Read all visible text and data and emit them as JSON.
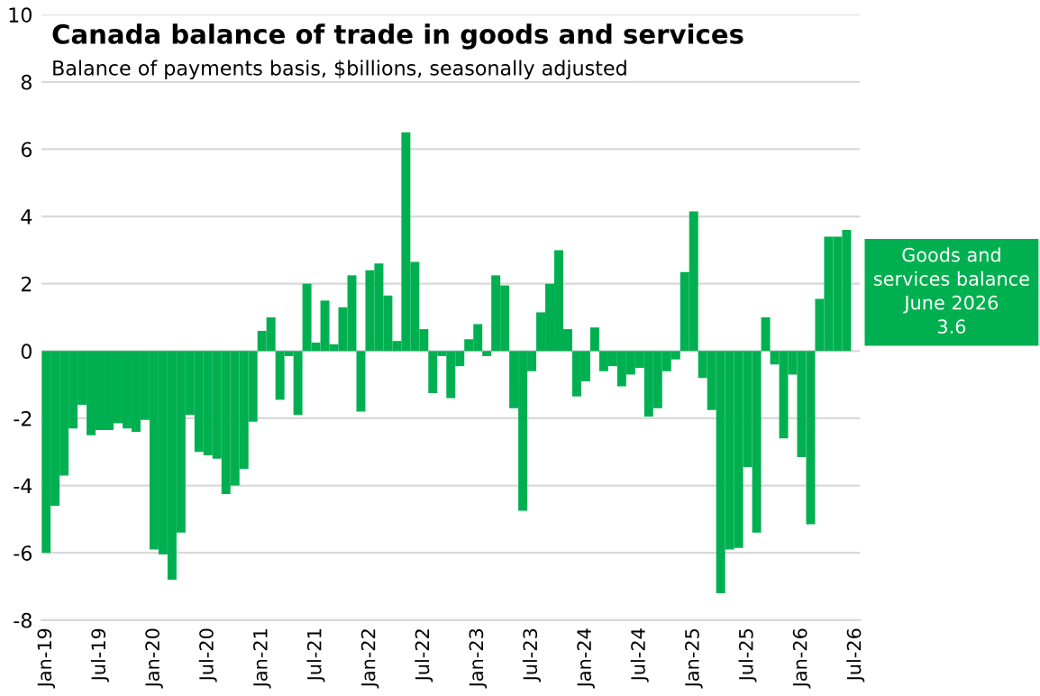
{
  "chart_data": {
    "type": "bar",
    "title": "Canada balance of trade in goods and services",
    "subtitle": "Balance of payments basis, $billions, seasonally adjusted",
    "categories": [
      "Jan-19",
      null,
      null,
      null,
      null,
      null,
      "Jul-19",
      null,
      null,
      null,
      null,
      null,
      "Jan-20",
      null,
      null,
      null,
      null,
      null,
      "Jul-20",
      null,
      null,
      null,
      null,
      null,
      "Jan-21",
      null,
      null,
      null,
      null,
      null,
      "Jul-21",
      null,
      null,
      null,
      null,
      null,
      "Jan-22",
      null,
      null,
      null,
      null,
      null,
      "Jul-22",
      null,
      null,
      null,
      null,
      null,
      "Jan-23",
      null,
      null,
      null,
      null,
      null,
      "Jul-23",
      null,
      null,
      null,
      null,
      null,
      "Jan-24",
      null,
      null,
      null,
      null,
      null,
      "Jul-24",
      null,
      null,
      null,
      null,
      null,
      "Jan-25",
      null,
      null,
      null,
      null,
      null,
      "Jul-25",
      null,
      null,
      null,
      null,
      null,
      "Jan-26",
      null,
      null,
      null,
      null,
      null,
      "Jul-26"
    ],
    "values": [
      -6.0,
      -4.6,
      -3.7,
      -2.3,
      -1.6,
      -2.5,
      -2.35,
      -2.35,
      -2.15,
      -2.3,
      -2.4,
      -2.05,
      -5.9,
      -6.05,
      -6.8,
      -5.4,
      -1.9,
      -3.0,
      -3.1,
      -3.2,
      -4.25,
      -4.0,
      -3.5,
      -2.1,
      0.6,
      1.0,
      -1.45,
      -0.15,
      -1.9,
      2.0,
      0.25,
      1.5,
      0.2,
      1.3,
      2.25,
      -1.8,
      2.4,
      2.6,
      1.65,
      0.3,
      6.5,
      2.65,
      0.65,
      -1.25,
      -0.15,
      -1.4,
      -0.45,
      0.35,
      0.8,
      -0.15,
      2.25,
      1.95,
      -1.7,
      -4.75,
      -0.6,
      1.15,
      2.0,
      3.0,
      0.65,
      -1.35,
      -0.9,
      0.7,
      -0.6,
      -0.45,
      -1.05,
      -0.7,
      -0.5,
      -1.95,
      -1.7,
      -0.6,
      -0.25,
      2.35,
      4.15,
      -0.8,
      -1.75,
      -7.2,
      -5.9,
      -5.85,
      -3.45,
      -5.4,
      1.0,
      -0.4,
      -2.6,
      -0.7,
      -3.15,
      -5.15,
      1.55,
      3.4,
      3.4,
      3.6,
      null
    ],
    "color": "#00b050",
    "ylim": [
      -8,
      10
    ],
    "yticks": [
      -8,
      -6,
      -4,
      -2,
      0,
      2,
      4,
      6,
      8,
      10
    ],
    "grid": "y",
    "annotations": [
      "Goods and\nservices balance\nJune 2026\n3.6"
    ]
  }
}
